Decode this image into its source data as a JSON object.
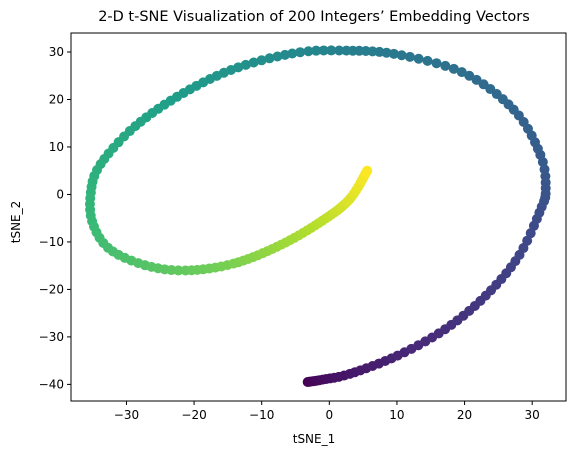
{
  "chart_data": {
    "type": "scatter",
    "title": "2-D t-SNE Visualization of 200 Integers’ Embedding Vectors",
    "xlabel": "tSNE_1",
    "ylabel": "tSNE_2",
    "xlim": [
      -38.2,
      35.0
    ],
    "ylim": [
      -43.5,
      34.0
    ],
    "xticks": [
      -30,
      -20,
      -10,
      0,
      10,
      20,
      30
    ],
    "yticks": [
      -40,
      -30,
      -20,
      -10,
      0,
      10,
      20,
      30
    ],
    "colormap": "viridis",
    "color_by": "integer index (0–199)",
    "n_points": 200,
    "grid": false,
    "legend": "none",
    "curve_keypoints": [
      {
        "t": 0.0,
        "x": -3.2,
        "y": -39.5
      },
      {
        "t": 0.03,
        "x": -1.0,
        "y": -39.0
      },
      {
        "t": 0.06,
        "x": 3.0,
        "y": -37.8
      },
      {
        "t": 0.1,
        "x": 10.0,
        "y": -34.0
      },
      {
        "t": 0.135,
        "x": 17.0,
        "y": -28.5
      },
      {
        "t": 0.17,
        "x": 23.0,
        "y": -21.5
      },
      {
        "t": 0.205,
        "x": 28.0,
        "y": -13.0
      },
      {
        "t": 0.24,
        "x": 31.3,
        "y": -3.0
      },
      {
        "t": 0.26,
        "x": 32.0,
        "y": 1.0
      },
      {
        "t": 0.285,
        "x": 31.3,
        "y": 8.0
      },
      {
        "t": 0.32,
        "x": 27.5,
        "y": 17.5
      },
      {
        "t": 0.36,
        "x": 20.0,
        "y": 25.5
      },
      {
        "t": 0.4,
        "x": 10.0,
        "y": 29.5
      },
      {
        "t": 0.44,
        "x": 2.0,
        "y": 30.3
      },
      {
        "t": 0.47,
        "x": -5.0,
        "y": 29.8
      },
      {
        "t": 0.51,
        "x": -14.0,
        "y": 26.5
      },
      {
        "t": 0.55,
        "x": -22.0,
        "y": 21.0
      },
      {
        "t": 0.59,
        "x": -29.0,
        "y": 14.0
      },
      {
        "t": 0.625,
        "x": -34.0,
        "y": 6.0
      },
      {
        "t": 0.65,
        "x": -35.3,
        "y": 0.0
      },
      {
        "t": 0.675,
        "x": -35.0,
        "y": -6.0
      },
      {
        "t": 0.7,
        "x": -32.5,
        "y": -11.5
      },
      {
        "t": 0.73,
        "x": -27.0,
        "y": -15.0
      },
      {
        "t": 0.76,
        "x": -21.0,
        "y": -16.0
      },
      {
        "t": 0.8,
        "x": -14.0,
        "y": -14.5
      },
      {
        "t": 0.85,
        "x": -7.0,
        "y": -10.5
      },
      {
        "t": 0.9,
        "x": -1.0,
        "y": -5.5
      },
      {
        "t": 0.95,
        "x": 3.0,
        "y": -1.0
      },
      {
        "t": 1.0,
        "x": 5.6,
        "y": 5.0
      }
    ]
  }
}
